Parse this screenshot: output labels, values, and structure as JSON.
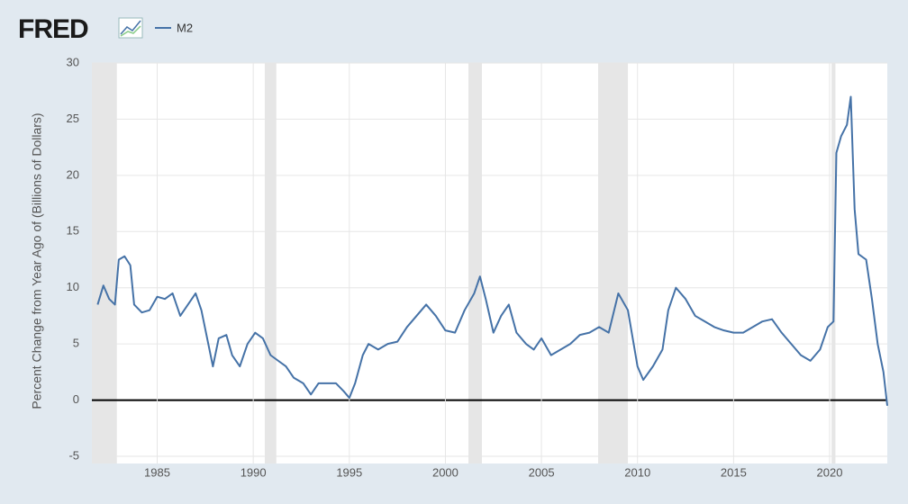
{
  "chart_data": {
    "type": "line",
    "logo": "FRED",
    "y_label": "Percent Change from Year Ago of (Billions of Dollars)",
    "series": [
      {
        "name": "M2",
        "color": "#4572a7",
        "x": [
          1981.9,
          1982.2,
          1982.5,
          1982.8,
          1983.0,
          1983.3,
          1983.6,
          1983.8,
          1984.2,
          1984.6,
          1985.0,
          1985.4,
          1985.8,
          1986.2,
          1986.6,
          1987.0,
          1987.3,
          1987.6,
          1987.9,
          1988.2,
          1988.6,
          1988.9,
          1989.3,
          1989.7,
          1990.1,
          1990.5,
          1990.9,
          1991.3,
          1991.7,
          1992.1,
          1992.6,
          1993.0,
          1993.4,
          1993.8,
          1994.3,
          1994.7,
          1995.0,
          1995.3,
          1995.7,
          1996.0,
          1996.5,
          1997.0,
          1997.5,
          1998.0,
          1998.5,
          1999.0,
          1999.5,
          2000.0,
          2000.5,
          2001.0,
          2001.5,
          2001.8,
          2002.1,
          2002.5,
          2002.9,
          2003.3,
          2003.7,
          2004.2,
          2004.6,
          2005.0,
          2005.5,
          2006.0,
          2006.5,
          2007.0,
          2007.5,
          2008.0,
          2008.5,
          2009.0,
          2009.5,
          2010.0,
          2010.3,
          2010.8,
          2011.3,
          2011.6,
          2012.0,
          2012.5,
          2013.0,
          2013.5,
          2014.0,
          2014.5,
          2015.0,
          2015.5,
          2016.0,
          2016.5,
          2017.0,
          2017.5,
          2018.0,
          2018.5,
          2019.0,
          2019.5,
          2019.9,
          2020.2,
          2020.35,
          2020.6,
          2020.9,
          2021.1,
          2021.3,
          2021.5,
          2021.9,
          2022.2,
          2022.5,
          2022.8,
          2023.0
        ],
        "values": [
          8.5,
          10.2,
          9.0,
          8.5,
          12.5,
          12.8,
          12.0,
          8.5,
          7.8,
          8.0,
          9.2,
          9.0,
          9.5,
          7.5,
          8.5,
          9.5,
          8.0,
          5.5,
          3.0,
          5.5,
          5.8,
          4.0,
          3.0,
          5.0,
          6.0,
          5.5,
          4.0,
          3.5,
          3.0,
          2.0,
          1.5,
          0.5,
          1.5,
          1.5,
          1.5,
          0.8,
          0.2,
          1.5,
          4.0,
          5.0,
          4.5,
          5.0,
          5.2,
          6.5,
          7.5,
          8.5,
          7.5,
          6.2,
          6.0,
          8.0,
          9.5,
          11.0,
          9.0,
          6.0,
          7.5,
          8.5,
          6.0,
          5.0,
          4.5,
          5.5,
          4.0,
          4.5,
          5.0,
          5.8,
          6.0,
          6.5,
          6.0,
          9.5,
          8.0,
          3.0,
          1.8,
          3.0,
          4.5,
          8.0,
          10.0,
          9.0,
          7.5,
          7.0,
          6.5,
          6.2,
          6.0,
          6.0,
          6.5,
          7.0,
          7.2,
          6.0,
          5.0,
          4.0,
          3.5,
          4.5,
          6.5,
          7.0,
          22.0,
          23.5,
          24.5,
          27.0,
          17.0,
          13.0,
          12.5,
          9.0,
          5.0,
          2.5,
          -0.5
        ]
      }
    ],
    "recessions": [
      [
        1981.6,
        1982.9
      ],
      [
        1990.6,
        1991.2
      ],
      [
        2001.2,
        2001.9
      ],
      [
        2007.95,
        2009.5
      ],
      [
        2020.1,
        2020.3
      ]
    ],
    "xlim": [
      1981.6,
      2023.0
    ],
    "xticks": [
      1985,
      1990,
      1995,
      2000,
      2005,
      2010,
      2015,
      2020
    ],
    "ylim": [
      -5,
      30
    ],
    "yticks": [
      -5,
      0,
      5,
      10,
      15,
      20,
      25,
      30
    ],
    "grid": true
  }
}
